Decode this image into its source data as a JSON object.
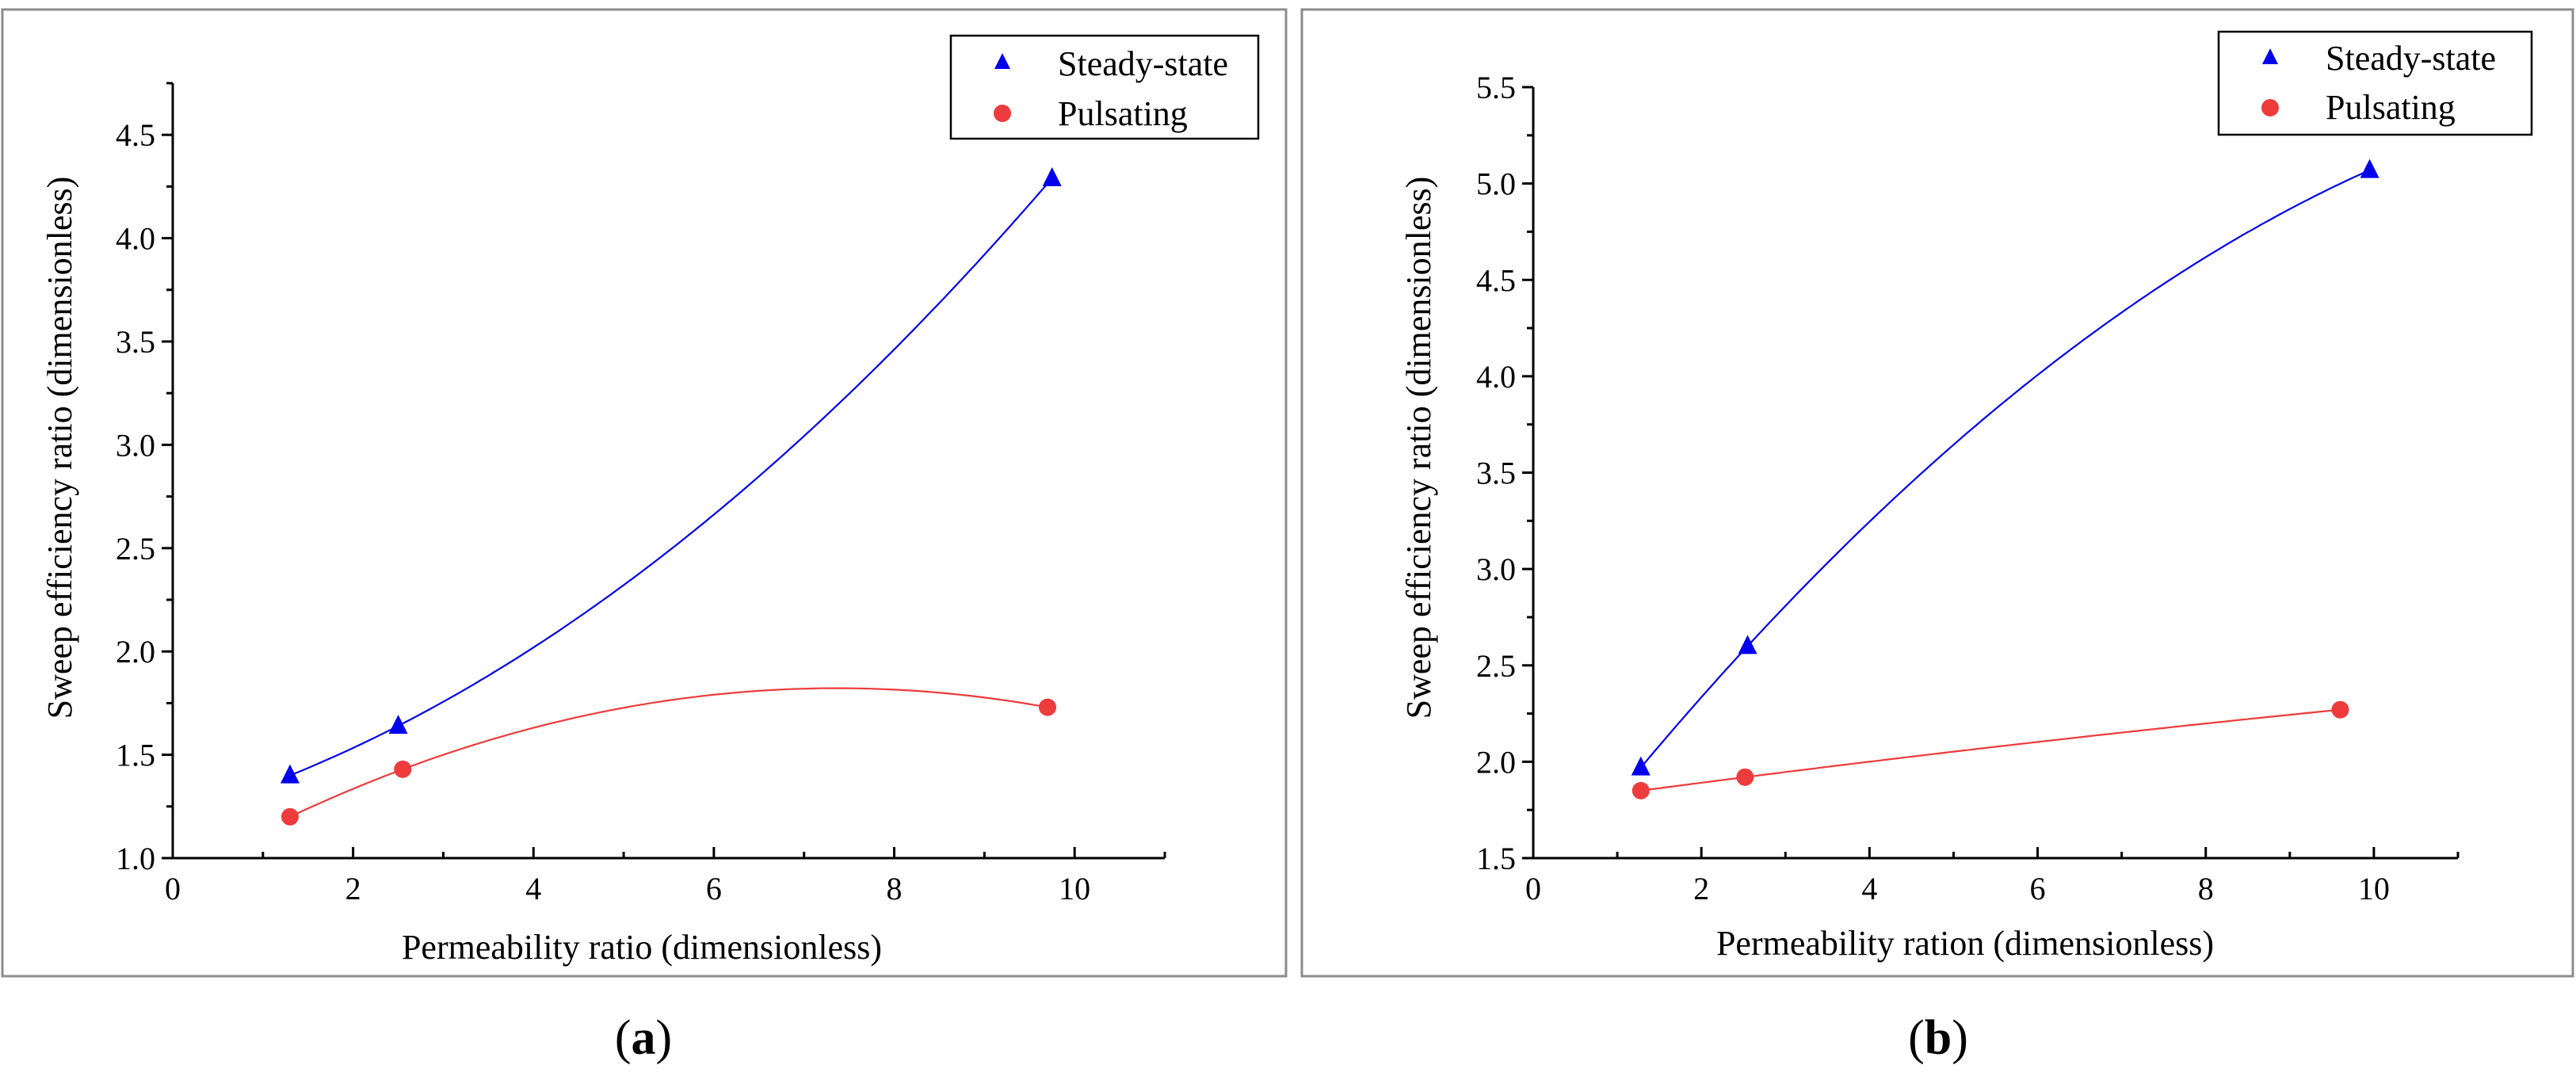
{
  "colors": {
    "steady": "#0000ee",
    "pulsating": "#ee3b3b"
  },
  "chart_data": [
    {
      "panel": "a",
      "caption_open": "(",
      "caption_letter": "a",
      "caption_close": ")",
      "type": "scatter",
      "xlabel": "Permeability ratio (dimensionless)",
      "ylabel": "Sweep efficiency ratio (dimensionless)",
      "xlim": [
        0,
        11
      ],
      "ylim": [
        1.0,
        4.75
      ],
      "xticks": [
        0,
        2,
        4,
        6,
        8,
        10
      ],
      "xtick_labels": [
        "0",
        "2",
        "4",
        "6",
        "8",
        "10"
      ],
      "yticks": [
        1.0,
        1.5,
        2.0,
        2.5,
        3.0,
        3.5,
        4.0,
        4.5
      ],
      "ytick_labels": [
        "1.0",
        "1.5",
        "2.0",
        "2.5",
        "3.0",
        "3.5",
        "4.0",
        "4.5"
      ],
      "legend_position": "top-right",
      "series": [
        {
          "name": "Steady-state",
          "marker": "triangle",
          "color_key": "steady",
          "x": [
            1.3,
            2.5,
            9.75
          ],
          "y": [
            1.4,
            1.64,
            4.29
          ]
        },
        {
          "name": "Pulsating",
          "marker": "circle",
          "color_key": "pulsating",
          "x": [
            1.3,
            2.55,
            9.7
          ],
          "y": [
            1.2,
            1.43,
            1.73
          ]
        }
      ]
    },
    {
      "panel": "b",
      "caption_open": "(",
      "caption_letter": "b",
      "caption_close": ")",
      "type": "scatter",
      "xlabel": "Permeability ration (dimensionless)",
      "ylabel": "Sweep efficiency ratio (dimensionless)",
      "xlim": [
        0,
        11
      ],
      "ylim": [
        1.5,
        5.5
      ],
      "xticks": [
        0,
        2,
        4,
        6,
        8,
        10
      ],
      "xtick_labels": [
        "0",
        "2",
        "4",
        "6",
        "8",
        "10"
      ],
      "yticks": [
        1.5,
        2.0,
        2.5,
        3.0,
        3.5,
        4.0,
        4.5,
        5.0,
        5.5
      ],
      "ytick_labels": [
        "1.5",
        "2.0",
        "2.5",
        "3.0",
        "3.5",
        "4.0",
        "4.5",
        "5.0",
        "5.5"
      ],
      "legend_position": "top-right",
      "series": [
        {
          "name": "Steady-state",
          "marker": "triangle",
          "color_key": "steady",
          "x": [
            1.28,
            2.55,
            9.95
          ],
          "y": [
            1.97,
            2.6,
            5.07
          ]
        },
        {
          "name": "Pulsating",
          "marker": "circle",
          "color_key": "pulsating",
          "x": [
            1.28,
            2.52,
            9.6
          ],
          "y": [
            1.85,
            1.92,
            2.27
          ]
        }
      ]
    }
  ]
}
